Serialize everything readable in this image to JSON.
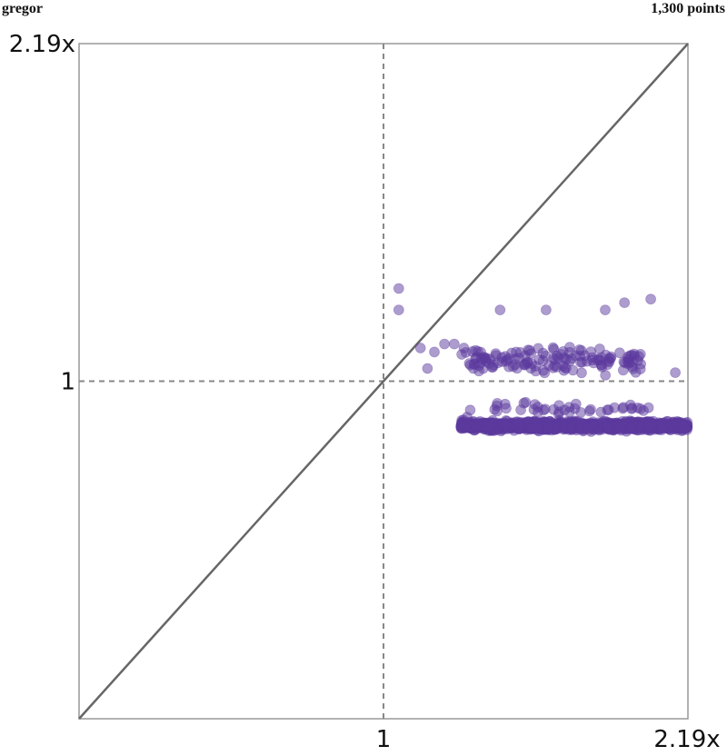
{
  "header": {
    "left_label": "gregor",
    "right_label": "1,300 points"
  },
  "chart_data": {
    "type": "scatter",
    "point_count": 1300,
    "x_scale": "log",
    "y_scale": "log",
    "xlim": [
      0.4566,
      2.19
    ],
    "ylim": [
      0.4566,
      2.19
    ],
    "x_ticks": [
      {
        "value": 1,
        "label": "1"
      },
      {
        "value": 2.19,
        "label": "2.19x"
      }
    ],
    "y_ticks": [
      {
        "value": 1,
        "label": "1"
      },
      {
        "value": 2.19,
        "label": "2.19x"
      }
    ],
    "reference_lines": {
      "diagonal_y_equals_x": true,
      "x_eq_1_dashed": true,
      "y_eq_1_dashed": true
    },
    "grid": false,
    "colors": {
      "points": "#5b3a9e",
      "diagonal": "#666666",
      "reference": "#888888",
      "frame": "#999999"
    },
    "clusters": [
      {
        "x_range": [
          1.22,
          2.19
        ],
        "y_range": [
          0.888,
          0.915
        ],
        "count": 1080,
        "note": "dense band below y=1"
      },
      {
        "x_range": [
          1.32,
          2.0
        ],
        "y_range": [
          0.92,
          0.96
        ],
        "count": 40
      },
      {
        "x_range": [
          1.22,
          1.94
        ],
        "y_range": [
          1.0,
          1.1
        ],
        "count": 140
      }
    ],
    "notable_points": [
      {
        "x": 1.04,
        "y": 1.24
      },
      {
        "x": 1.04,
        "y": 1.18
      },
      {
        "x": 1.35,
        "y": 1.18
      },
      {
        "x": 1.52,
        "y": 1.18
      },
      {
        "x": 1.77,
        "y": 1.18
      },
      {
        "x": 1.86,
        "y": 1.2
      },
      {
        "x": 1.99,
        "y": 1.21
      },
      {
        "x": 1.1,
        "y": 1.08
      },
      {
        "x": 1.14,
        "y": 1.07
      },
      {
        "x": 1.17,
        "y": 1.09
      },
      {
        "x": 1.2,
        "y": 1.09
      },
      {
        "x": 1.23,
        "y": 1.08
      },
      {
        "x": 1.12,
        "y": 1.03
      },
      {
        "x": 1.26,
        "y": 1.03
      },
      {
        "x": 1.25,
        "y": 0.935
      },
      {
        "x": 1.24,
        "y": 0.92
      },
      {
        "x": 2.12,
        "y": 1.02
      }
    ]
  }
}
